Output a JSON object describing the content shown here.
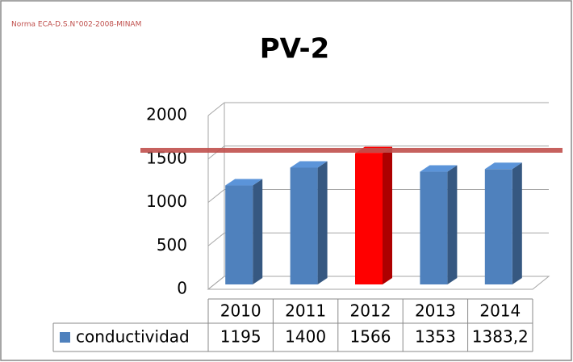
{
  "chart_data": {
    "type": "bar3d",
    "title": "PV-2",
    "annotation": "Norma ECA-D.S.N°002-2008-MINAM",
    "categories": [
      "2010",
      "2011",
      "2012",
      "2013",
      "2014"
    ],
    "series": [
      {
        "name": "conductividad",
        "color": "#4f81bd",
        "point_colors": [
          "#4f81bd",
          "#4f81bd",
          "#ff0000",
          "#4f81bd",
          "#4f81bd"
        ],
        "values": [
          1195,
          1400,
          1566,
          1353,
          1383.2
        ],
        "value_labels": [
          "1195",
          "1400",
          "1566",
          "1353",
          "1383,2"
        ]
      }
    ],
    "threshold": 1600,
    "threshold_color": "#c0504d",
    "ylim": [
      0,
      2000
    ],
    "yticks": [
      0,
      500,
      1000,
      1500,
      2000
    ],
    "grid": true
  }
}
